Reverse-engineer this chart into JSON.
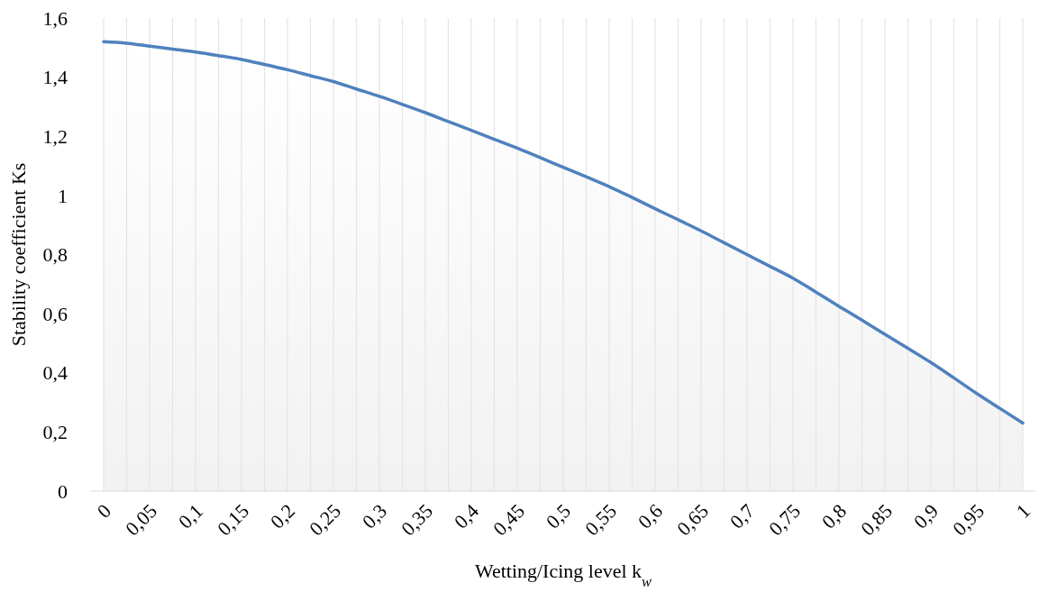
{
  "chart_data": {
    "type": "area",
    "xlabel": "Wetting/Icing level k$_{w}$",
    "ylabel": "Stability coefficient Ks",
    "categories": [
      "0",
      null,
      "0,05",
      null,
      "0,1",
      null,
      "0,15",
      null,
      "0,2",
      null,
      "0,25",
      null,
      "0,3",
      null,
      "0,35",
      null,
      "0,4",
      null,
      "0,45",
      null,
      "0,5",
      null,
      "0,55",
      null,
      "0,6",
      null,
      "0,65",
      null,
      "0,7",
      null,
      "0,75",
      null,
      "0,8",
      null,
      "0,85",
      null,
      "0,9",
      null,
      "0,95",
      null,
      "1"
    ],
    "series": [
      {
        "color": "#4f81bd",
        "values": [
          1.52,
          1.515,
          1.505,
          1.495,
          1.485,
          1.473,
          1.46,
          1.443,
          1.425,
          1.405,
          1.385,
          1.36,
          1.335,
          1.308,
          1.28,
          1.25,
          1.22,
          1.19,
          1.16,
          1.128,
          1.095,
          1.063,
          1.03,
          0.993,
          0.955,
          0.918,
          0.88,
          0.84,
          0.8,
          0.76,
          0.72,
          0.673,
          0.625,
          0.578,
          0.53,
          0.483,
          0.435,
          0.383,
          0.33,
          0.28,
          0.23
        ]
      }
    ],
    "ylim": [
      0,
      1.6
    ],
    "yticks": [
      0,
      {
        "value": 0.2,
        "label": "0,2"
      },
      {
        "value": 0.4,
        "label": "0,4"
      },
      {
        "value": 0.6,
        "label": "0,6"
      },
      {
        "value": 0.8,
        "label": "0,8"
      },
      1,
      {
        "value": 1.2,
        "label": "1,2"
      },
      {
        "value": 1.4,
        "label": "1,4"
      },
      {
        "value": 1.6,
        "label": "1,6"
      }
    ],
    "grid": "x"
  }
}
